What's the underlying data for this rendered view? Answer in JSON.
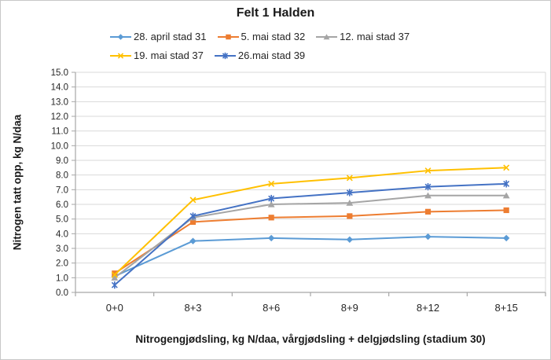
{
  "window": {
    "background": "#FFFFFF",
    "border_color": "#C8C8C8"
  },
  "chart_data": {
    "type": "line",
    "title": "Felt 1 Halden",
    "categories": [
      "0+0",
      "8+3",
      "8+6",
      "8+9",
      "8+12",
      "8+15"
    ],
    "series": [
      {
        "name": "28. april stad 31",
        "color": "#5B9BD5",
        "marker": "diamond",
        "values": [
          1.1,
          3.5,
          3.7,
          3.6,
          3.8,
          3.7
        ]
      },
      {
        "name": "5. mai stad 32",
        "color": "#ED7D31",
        "marker": "square",
        "values": [
          1.3,
          4.8,
          5.1,
          5.2,
          5.5,
          5.6
        ]
      },
      {
        "name": "12. mai stad 37",
        "color": "#A5A5A5",
        "marker": "triangle",
        "values": [
          1.0,
          5.1,
          6.0,
          6.1,
          6.6,
          6.6
        ]
      },
      {
        "name": "19. mai stad 37",
        "color": "#FFC000",
        "marker": "x",
        "values": [
          1.2,
          6.3,
          7.4,
          7.8,
          8.3,
          8.5
        ]
      },
      {
        "name": "26.mai stad 39",
        "color": "#4472C4",
        "marker": "asterisk",
        "values": [
          0.5,
          5.2,
          6.4,
          6.8,
          7.2,
          7.4
        ]
      }
    ],
    "xlabel": "Nitrogengjødsling, kg N/daa, vårgjødsling + delgjødsling (stadium 30)",
    "ylabel": "Nitrogen tatt opp, kg N/daa",
    "ylim": [
      0.0,
      15.0
    ],
    "ytick_step": 1.0,
    "ytick_labels": [
      "15.0",
      "14.0",
      "13.0",
      "12.0",
      "11.0",
      "10.0",
      "9.0",
      "8.0",
      "7.0",
      "6.0",
      "5.0",
      "4.0",
      "3.0",
      "2.0",
      "1.0",
      "0.0"
    ],
    "grid": true,
    "legend_position": "top",
    "legend_row_break": 3,
    "colors": {
      "gridline": "#D9D9D9",
      "axis": "#A6A6A6",
      "text": "#262626"
    }
  }
}
